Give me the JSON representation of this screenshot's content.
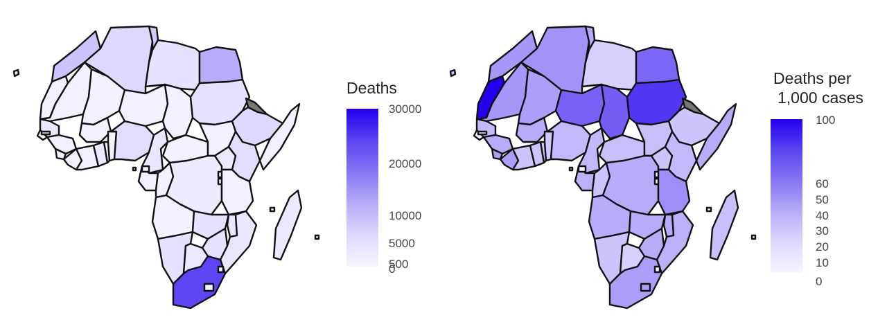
{
  "maps": [
    {
      "legend": {
        "title_lines": [
          "Deaths"
        ],
        "ticks": [
          "30000",
          "20000",
          "10000",
          "5000",
          "500",
          "0"
        ],
        "scale": "sqrt",
        "limits": [
          0,
          30000
        ],
        "low_color": "#f7f5ff",
        "high_color": "#2200ee"
      }
    },
    {
      "legend": {
        "title_lines": [
          "Deaths per",
          "1,000 cases"
        ],
        "ticks": [
          "100",
          "60",
          "50",
          "40",
          "30",
          "20",
          "10",
          "0"
        ],
        "scale": "sqrt",
        "limits": [
          0,
          100
        ],
        "low_color": "#f7f5ff",
        "high_color": "#2200ee"
      }
    }
  ],
  "na_color": "#777777"
}
